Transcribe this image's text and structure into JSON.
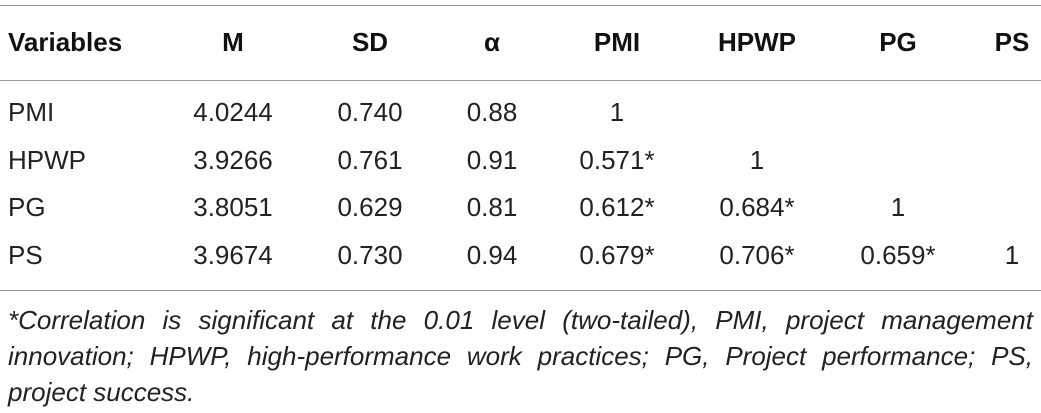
{
  "table": {
    "header": [
      "Variables",
      "M",
      "SD",
      "α",
      "PMI",
      "HPWP",
      "PG",
      "PS"
    ],
    "rows": [
      [
        "PMI",
        "4.0244",
        "0.740",
        "0.88",
        "1",
        null,
        null,
        null
      ],
      [
        "HPWP",
        "3.9266",
        "0.761",
        "0.91",
        "0.571*",
        "1",
        null,
        null
      ],
      [
        "PG",
        "3.8051",
        "0.629",
        "0.81",
        "0.612*",
        "0.684*",
        "1",
        null
      ],
      [
        "PS",
        "3.9674",
        "0.730",
        "0.94",
        "0.679*",
        "0.706*",
        "0.659*",
        "1"
      ]
    ],
    "footnote": "*Correlation is significant at the 0.01 level (two-tailed), PMI, project management innovation; HPWP, high-performance work practices; PG, Project performance; PS, project success."
  }
}
